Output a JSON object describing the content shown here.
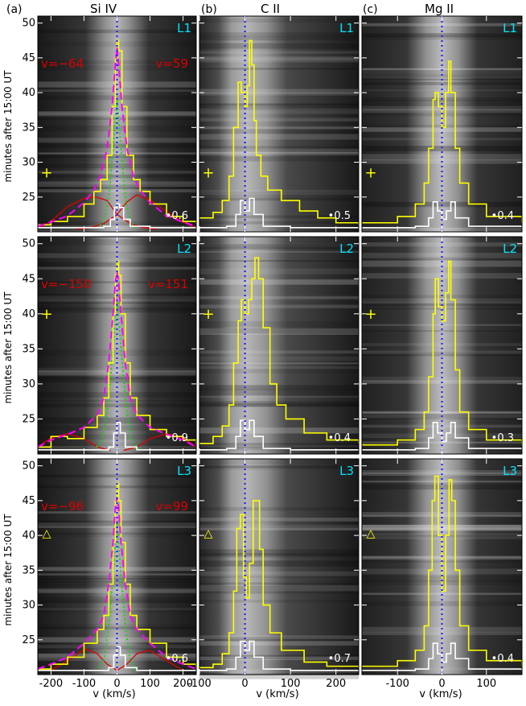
{
  "figure": {
    "ylabel": "minutes after 15:00 UT",
    "xlabel": "v (km/s)",
    "colors": {
      "background_dark": "#111111",
      "band_light": "#bdbdbd",
      "yellow": "#ffff00",
      "white": "#ffffff",
      "blue": "#2222ff",
      "red": "#dd0000",
      "magenta": "#ff00ff",
      "green": "#00dd00",
      "cyan": "#00e5ff"
    }
  },
  "chart_data": [
    {
      "type": "line",
      "panel": "(a)",
      "ion": "Si IV",
      "row": "L1",
      "ylim": [
        20,
        51
      ],
      "yticks": [
        25,
        30,
        35,
        40,
        45,
        50
      ],
      "xlim": [
        -240,
        240
      ],
      "xticks": [
        -200,
        -100,
        0,
        100,
        200
      ],
      "scale": "•0.6",
      "marker": "+",
      "marker_y": 28.5,
      "annotations": {
        "v_left": "v=−64",
        "v_right": "v=59"
      },
      "profile_yellow": {
        "x": [
          -240,
          -200,
          -150,
          -100,
          -70,
          -50,
          -30,
          -15,
          -5,
          0,
          5,
          15,
          30,
          50,
          70,
          100,
          150,
          200,
          240
        ],
        "y": [
          21,
          21.5,
          22.2,
          24,
          25.8,
          27.5,
          31,
          38,
          45,
          47.5,
          46,
          38,
          31,
          27.5,
          25.8,
          24,
          22.2,
          21.5,
          21.2
        ]
      },
      "fit_magenta": {
        "x": [
          -240,
          -200,
          -150,
          -100,
          -70,
          -50,
          -30,
          -15,
          -5,
          0,
          5,
          15,
          30,
          50,
          70,
          100,
          150,
          200,
          240
        ],
        "y": [
          20.8,
          21.4,
          22.3,
          24.2,
          26,
          28,
          32,
          38,
          44,
          46.5,
          44,
          38,
          32,
          28,
          26,
          24.2,
          22.3,
          21.4,
          20.8
        ]
      },
      "fit_red": [
        {
          "x": [
            -240,
            -200,
            -150,
            -100,
            -64,
            -30,
            0,
            40,
            80,
            120
          ],
          "y": [
            20.5,
            21.5,
            23.6,
            24.8,
            25,
            24.5,
            22.5,
            21.2,
            20.6,
            20.4
          ]
        },
        {
          "x": [
            -120,
            -80,
            -40,
            0,
            30,
            59,
            100,
            150,
            200,
            240
          ],
          "y": [
            20.4,
            20.6,
            21.2,
            22.5,
            24.3,
            25.3,
            24.6,
            22.9,
            21.4,
            20.6
          ]
        }
      ],
      "fit_green": {
        "x": [
          -60,
          -40,
          -25,
          -12,
          0,
          12,
          25,
          40,
          60
        ],
        "y": [
          20.5,
          21.5,
          25,
          32,
          39,
          32,
          25,
          21.5,
          20.5
        ]
      },
      "profile_white": {
        "x": [
          -240,
          -100,
          -40,
          -20,
          -8,
          0,
          8,
          20,
          40,
          100,
          240
        ],
        "y": [
          20.6,
          20.6,
          20.8,
          21.8,
          23.5,
          24,
          23.5,
          21.8,
          20.8,
          20.6,
          20.6
        ]
      }
    },
    {
      "type": "line",
      "panel": "(b)",
      "ion": "C II",
      "row": "L1",
      "ylim": [
        20,
        51
      ],
      "yticks": [
        25,
        30,
        35,
        40,
        45,
        50
      ],
      "xlim": [
        -100,
        250
      ],
      "xticks": [
        -100,
        0,
        100,
        200
      ],
      "scale": "•0.5",
      "marker": "+",
      "marker_y": 28.5,
      "profile_yellow": {
        "x": [
          -100,
          -70,
          -50,
          -35,
          -25,
          -15,
          -8,
          0,
          5,
          10,
          15,
          20,
          25,
          35,
          50,
          80,
          120,
          160,
          200,
          250
        ],
        "y": [
          22,
          22.8,
          24.5,
          28,
          35,
          41.5,
          40,
          38,
          41,
          47.5,
          44,
          36,
          31,
          28,
          26,
          24.5,
          23,
          22,
          21.3,
          21
        ]
      },
      "profile_white": {
        "x": [
          -100,
          -40,
          -20,
          -10,
          0,
          10,
          20,
          40,
          100,
          250
        ],
        "y": [
          20.6,
          20.8,
          22.5,
          24.5,
          23,
          24.8,
          22.5,
          20.8,
          20.6,
          20.6
        ]
      }
    },
    {
      "type": "line",
      "panel": "(c)",
      "ion": "Mg II",
      "row": "L1",
      "ylim": [
        20,
        51
      ],
      "yticks": [
        25,
        30,
        35,
        40,
        45,
        50
      ],
      "xlim": [
        -180,
        180
      ],
      "xticks": [
        -100,
        0,
        100
      ],
      "scale": "•0.4",
      "marker": "+",
      "marker_y": 28.5,
      "profile_yellow": {
        "x": [
          -180,
          -100,
          -60,
          -40,
          -30,
          -20,
          -15,
          -8,
          0,
          8,
          15,
          20,
          30,
          40,
          60,
          100,
          180
        ],
        "y": [
          21.3,
          22.2,
          24,
          27,
          32,
          39,
          40,
          38,
          35,
          40,
          44.5,
          40,
          32,
          27,
          24,
          22.2,
          21.3
        ]
      },
      "profile_white": {
        "x": [
          -180,
          -60,
          -30,
          -20,
          -10,
          0,
          10,
          20,
          30,
          60,
          180
        ],
        "y": [
          20.6,
          20.8,
          22,
          24.3,
          23,
          21.8,
          23,
          24.3,
          22,
          20.8,
          20.6
        ]
      }
    },
    {
      "type": "line",
      "panel": "(a)",
      "ion": "Si IV",
      "row": "L2",
      "ylim": [
        20,
        51
      ],
      "yticks": [
        25,
        30,
        35,
        40,
        45,
        50
      ],
      "xlim": [
        -240,
        240
      ],
      "xticks": [
        -200,
        -100,
        0,
        100,
        200
      ],
      "scale": "•0.9",
      "marker": "+",
      "marker_y": 40,
      "annotations": {
        "v_left": "v=−150",
        "v_right": "v=151"
      },
      "profile_yellow": {
        "x": [
          -240,
          -200,
          -150,
          -100,
          -60,
          -40,
          -25,
          -12,
          -5,
          0,
          5,
          12,
          25,
          40,
          60,
          100,
          150,
          200,
          240
        ],
        "y": [
          21,
          22.5,
          22.2,
          23.8,
          25.5,
          28,
          33,
          40,
          45.5,
          47.5,
          45.5,
          40,
          33,
          28,
          25.5,
          23.5,
          22.5,
          22,
          21.3
        ]
      },
      "fit_magenta": {
        "x": [
          -240,
          -200,
          -150,
          -100,
          -60,
          -40,
          -25,
          -12,
          -5,
          0,
          5,
          12,
          25,
          40,
          60,
          100,
          150,
          200,
          240
        ],
        "y": [
          21,
          22,
          22.8,
          23.8,
          25.6,
          28,
          33,
          40,
          44.5,
          46,
          44.5,
          40,
          33,
          28,
          25.6,
          23.8,
          22.8,
          22,
          21
        ]
      },
      "fit_red": [
        {
          "x": [
            -240,
            -200,
            -150,
            -100,
            -60,
            -20
          ],
          "y": [
            21,
            22.3,
            22.9,
            22.2,
            21,
            20.5
          ]
        },
        {
          "x": [
            20,
            60,
            100,
            151,
            200,
            240
          ],
          "y": [
            20.5,
            21,
            22.2,
            22.9,
            22.3,
            21
          ]
        }
      ],
      "fit_green": {
        "x": [
          -70,
          -45,
          -28,
          -14,
          0,
          14,
          28,
          45,
          70
        ],
        "y": [
          20.5,
          22,
          26.5,
          34,
          42,
          34,
          26.5,
          22,
          20.5
        ]
      },
      "profile_white": {
        "x": [
          -240,
          -60,
          -25,
          -10,
          0,
          10,
          25,
          60,
          240
        ],
        "y": [
          20.6,
          20.6,
          21,
          23,
          24.5,
          23,
          21,
          20.6,
          20.6
        ]
      }
    },
    {
      "type": "line",
      "panel": "(b)",
      "ion": "C II",
      "row": "L2",
      "ylim": [
        20,
        51
      ],
      "yticks": [
        25,
        30,
        35,
        40,
        45,
        50
      ],
      "xlim": [
        -100,
        250
      ],
      "xticks": [
        -100,
        0,
        100,
        200
      ],
      "scale": "•0.4",
      "marker": "+",
      "marker_y": 40,
      "profile_yellow": {
        "x": [
          -100,
          -70,
          -50,
          -35,
          -25,
          -15,
          -8,
          0,
          8,
          15,
          22,
          30,
          40,
          55,
          70,
          90,
          130,
          180,
          250
        ],
        "y": [
          21.5,
          22.5,
          24,
          27,
          33,
          39,
          42,
          40,
          42,
          45,
          48,
          45,
          38,
          30,
          27,
          25,
          23,
          22,
          21.5
        ]
      },
      "profile_white": {
        "x": [
          -100,
          -40,
          -20,
          -10,
          0,
          10,
          20,
          40,
          100,
          250
        ],
        "y": [
          20.6,
          20.8,
          22.5,
          24.8,
          23.5,
          24.8,
          22.5,
          20.8,
          20.6,
          20.6
        ]
      }
    },
    {
      "type": "line",
      "panel": "(c)",
      "ion": "Mg II",
      "row": "L2",
      "ylim": [
        20,
        51
      ],
      "yticks": [
        25,
        30,
        35,
        40,
        45,
        50
      ],
      "xlim": [
        -180,
        180
      ],
      "xticks": [
        -100,
        0,
        100
      ],
      "scale": "•0.3",
      "marker": "+",
      "marker_y": 40,
      "profile_yellow": {
        "x": [
          -180,
          -100,
          -60,
          -40,
          -30,
          -20,
          -15,
          -8,
          0,
          8,
          15,
          20,
          30,
          40,
          60,
          100,
          180
        ],
        "y": [
          21.3,
          22,
          23.5,
          26,
          31,
          40,
          45,
          41,
          39,
          43,
          47.5,
          42,
          32,
          26,
          23.5,
          22,
          21.3
        ]
      },
      "profile_white": {
        "x": [
          -180,
          -60,
          -30,
          -20,
          -10,
          0,
          10,
          20,
          30,
          60,
          180
        ],
        "y": [
          20.6,
          20.8,
          22.3,
          24.5,
          23,
          21.8,
          23,
          24.5,
          22.3,
          20.8,
          20.6
        ]
      }
    },
    {
      "type": "line",
      "panel": "(a)",
      "ion": "Si IV",
      "row": "L3",
      "ylim": [
        20,
        51
      ],
      "yticks": [
        25,
        30,
        35,
        40,
        45,
        50
      ],
      "xlim": [
        -240,
        240
      ],
      "xticks": [
        -200,
        -100,
        0,
        100,
        200
      ],
      "scale": "•0.6",
      "marker": "△",
      "marker_y": 40.5,
      "annotations": {
        "v_left": "v=−96",
        "v_right": "v=99"
      },
      "profile_yellow": {
        "x": [
          -240,
          -200,
          -150,
          -100,
          -60,
          -40,
          -25,
          -12,
          -5,
          0,
          5,
          12,
          25,
          40,
          60,
          100,
          150,
          200,
          240
        ],
        "y": [
          20.8,
          21.5,
          22.5,
          24.5,
          26.5,
          28.5,
          33,
          39,
          45,
          47.5,
          45,
          39,
          33,
          28.5,
          26.5,
          24.5,
          22.5,
          21.5,
          20.8
        ]
      },
      "fit_magenta": {
        "x": [
          -240,
          -200,
          -150,
          -100,
          -60,
          -40,
          -25,
          -12,
          -5,
          0,
          5,
          12,
          25,
          40,
          60,
          100,
          150,
          200,
          240
        ],
        "y": [
          20.8,
          21.5,
          22.5,
          24.5,
          26.5,
          28.5,
          33,
          39,
          44,
          45.5,
          44,
          39,
          33,
          28.5,
          26.5,
          24.5,
          22.5,
          21.5,
          20.8
        ]
      },
      "fit_red": [
        {
          "x": [
            -200,
            -150,
            -96,
            -60,
            -30,
            0
          ],
          "y": [
            20.6,
            22,
            23.7,
            23,
            21.5,
            20.6
          ]
        },
        {
          "x": [
            0,
            30,
            60,
            99,
            150,
            200
          ],
          "y": [
            20.6,
            21.5,
            23,
            23.5,
            22,
            20.6
          ]
        }
      ],
      "fit_green": {
        "x": [
          -60,
          -40,
          -25,
          -12,
          0,
          12,
          25,
          40,
          60
        ],
        "y": [
          20.5,
          22,
          27,
          34,
          42,
          34,
          27,
          22,
          20.5
        ]
      },
      "profile_white": {
        "x": [
          -240,
          -60,
          -25,
          -10,
          0,
          10,
          25,
          60,
          240
        ],
        "y": [
          20.6,
          20.6,
          21,
          22.8,
          24,
          22.8,
          21,
          20.6,
          20.6
        ]
      }
    },
    {
      "type": "line",
      "panel": "(b)",
      "ion": "C II",
      "row": "L3",
      "ylim": [
        20,
        51
      ],
      "yticks": [
        25,
        30,
        35,
        40,
        45,
        50
      ],
      "xlim": [
        -100,
        250
      ],
      "xticks": [
        -100,
        0,
        100,
        200
      ],
      "scale": "•0.7",
      "marker": "△",
      "marker_y": 40.5,
      "profile_yellow": {
        "x": [
          -100,
          -70,
          -50,
          -35,
          -25,
          -18,
          -10,
          -3,
          3,
          10,
          18,
          25,
          32,
          40,
          55,
          80,
          130,
          180,
          250
        ],
        "y": [
          21,
          21.5,
          23,
          26,
          32,
          41,
          43,
          34,
          31,
          36,
          45,
          45,
          38,
          30,
          26,
          23.5,
          21.8,
          21.2,
          21
        ]
      },
      "profile_white": {
        "x": [
          -100,
          -40,
          -20,
          -10,
          0,
          10,
          20,
          40,
          100,
          250
        ],
        "y": [
          20.6,
          20.8,
          22.5,
          24.8,
          23.5,
          24.8,
          22.5,
          20.8,
          20.6,
          20.6
        ]
      }
    },
    {
      "type": "line",
      "panel": "(c)",
      "ion": "Mg II",
      "row": "L3",
      "ylim": [
        20,
        51
      ],
      "yticks": [
        25,
        30,
        35,
        40,
        45,
        50
      ],
      "xlim": [
        -180,
        180
      ],
      "xticks": [
        -100,
        0,
        100
      ],
      "scale": "•0.4",
      "marker": "△",
      "marker_y": 40.5,
      "profile_yellow": {
        "x": [
          -180,
          -100,
          -60,
          -40,
          -30,
          -22,
          -16,
          -8,
          0,
          8,
          16,
          22,
          30,
          40,
          60,
          100,
          180
        ],
        "y": [
          21.2,
          22,
          23.5,
          27,
          35,
          45,
          48.5,
          40,
          32,
          40,
          48,
          45,
          35,
          27,
          23.5,
          22,
          21.2
        ]
      },
      "profile_white": {
        "x": [
          -180,
          -60,
          -30,
          -20,
          -10,
          0,
          10,
          20,
          30,
          60,
          180
        ],
        "y": [
          20.6,
          20.8,
          22.3,
          24.5,
          23,
          21.8,
          23,
          24.5,
          22.3,
          20.8,
          20.6
        ]
      }
    }
  ],
  "panel_titles": [
    {
      "label": "(a)",
      "ion": "Si IV"
    },
    {
      "label": "(b)",
      "ion": "C II"
    },
    {
      "label": "(c)",
      "ion": "Mg II"
    }
  ]
}
